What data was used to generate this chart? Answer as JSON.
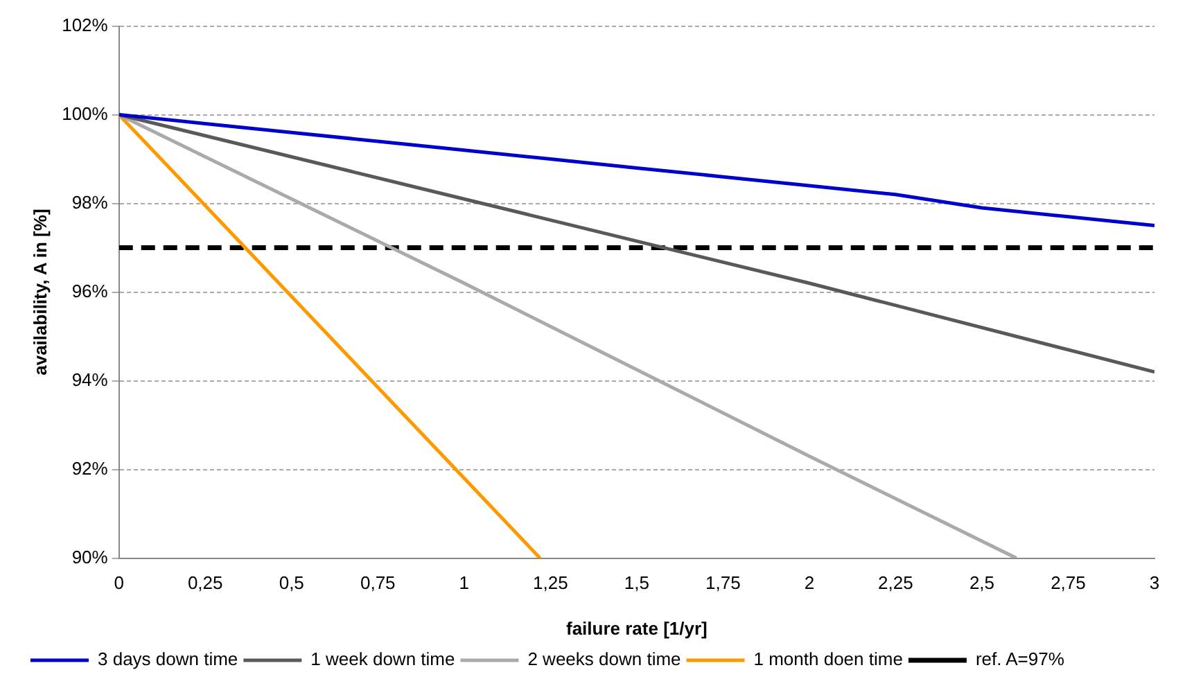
{
  "chart_data": {
    "type": "line",
    "xlabel": "failure rate [1/yr]",
    "ylabel": "availability, A in [%]",
    "xlim": [
      0,
      3
    ],
    "xticks": [
      0,
      {
        "value": 0.25,
        "label": "0,25"
      },
      {
        "value": 0.5,
        "label": "0,5"
      },
      {
        "value": 0.75,
        "label": "0,75"
      },
      1,
      {
        "value": 1.25,
        "label": "1,25"
      },
      {
        "value": 1.5,
        "label": "1,5"
      },
      {
        "value": 1.75,
        "label": "1,75"
      },
      2,
      {
        "value": 2.25,
        "label": "2,25"
      },
      {
        "value": 2.5,
        "label": "2,5"
      },
      {
        "value": 2.75,
        "label": "2,75"
      },
      3
    ],
    "ylim": [
      90,
      102
    ],
    "yticks": [
      {
        "value": 90,
        "label": "90%"
      },
      {
        "value": 92,
        "label": "92%"
      },
      {
        "value": 94,
        "label": "94%"
      },
      {
        "value": 96,
        "label": "96%"
      },
      {
        "value": 98,
        "label": "98%"
      },
      {
        "value": 100,
        "label": "100%"
      },
      {
        "value": 102,
        "label": "102%"
      }
    ],
    "grid": "y",
    "legend": "bottom",
    "marker": "none",
    "series": [
      {
        "name": "3 days down time",
        "color": "#0000cc",
        "x": [
          0,
          0.25,
          0.5,
          0.75,
          1,
          1.25,
          1.5,
          1.75,
          2,
          2.25,
          2.5,
          2.75,
          3
        ],
        "values": [
          100,
          99.8,
          99.6,
          99.4,
          99.2,
          99.0,
          98.8,
          98.6,
          98.4,
          98.2,
          97.9,
          97.7,
          97.5
        ]
      },
      {
        "name": "1 week down time",
        "color": "#595959",
        "x": [
          0,
          1,
          2,
          3
        ],
        "values": [
          100,
          98.1,
          96.2,
          94.2
        ]
      },
      {
        "name": "2 weeks down time",
        "color": "#aaaaaa",
        "x": [
          0,
          1,
          2,
          2.6
        ],
        "values": [
          100,
          96.2,
          92.3,
          90
        ]
      },
      {
        "name": "1 month doen time",
        "color": "#ff9900",
        "x": [
          0,
          1.22
        ],
        "values": [
          100,
          90
        ]
      }
    ],
    "ref_lines": [
      {
        "axis": "y",
        "value": 97,
        "label": "ref. A=97%",
        "color": "#000000",
        "line_style": "dashed"
      }
    ]
  }
}
